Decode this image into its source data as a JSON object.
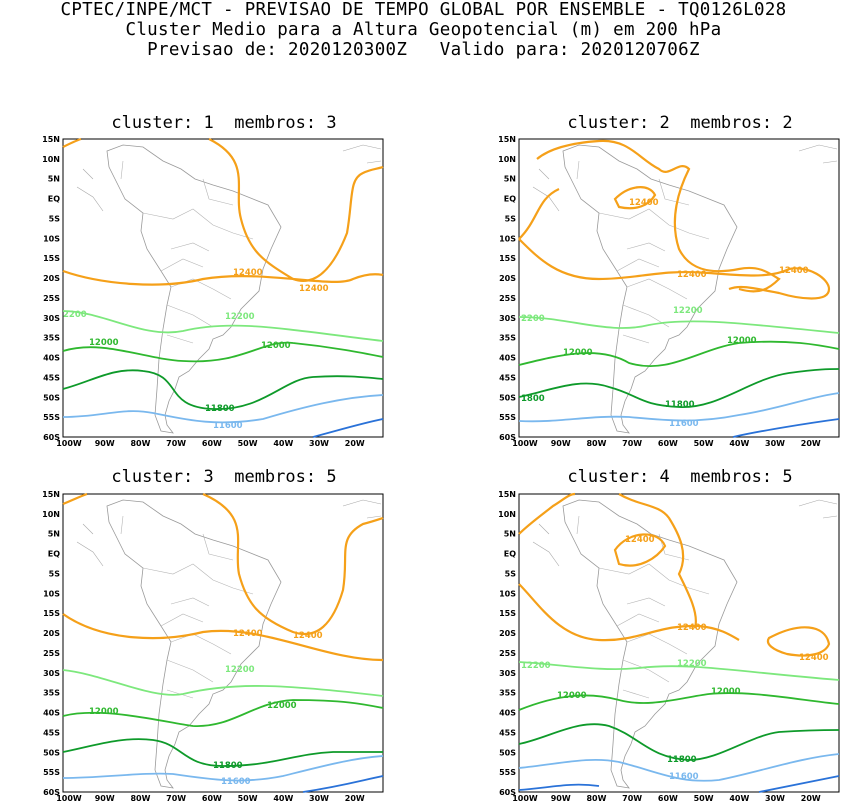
{
  "header": {
    "line1": "CPTEC/INPE/MCT - PREVISAO DE TEMPO GLOBAL POR ENSEMBLE - TQ0126L028",
    "line2": "Cluster Medio para a Altura Geopotencial (m) em 200 hPa",
    "line3": "Previsao de: 2020120300Z   Valido para: 2020120706Z"
  },
  "colors": {
    "c12400": "#f5a019",
    "c12200": "#7de87d",
    "c12000": "#2fb82f",
    "c11800": "#0e9a2a",
    "c11600": "#7ab8ee",
    "c11400": "#2a72d8",
    "land": "#9a9a9a"
  },
  "lat_labels": [
    "15N",
    "10N",
    "5N",
    "EQ",
    "5S",
    "10S",
    "15S",
    "20S",
    "25S",
    "30S",
    "35S",
    "40S",
    "45S",
    "50S",
    "55S",
    "60S"
  ],
  "lon_labels": [
    "100W",
    "90W",
    "80W",
    "70W",
    "60W",
    "50W",
    "40W",
    "30W",
    "20W"
  ],
  "panels": [
    {
      "title": "cluster: 1  membros: 3",
      "labels": {
        "a": "12400",
        "b": "12400",
        "c": "2200",
        "d": "12200",
        "e": "12000",
        "f": "12000",
        "g": "11800",
        "h": "11600"
      }
    },
    {
      "title": "cluster: 2  membros: 2",
      "labels": {
        "a": "12400",
        "b": "12400",
        "b2": "12400",
        "c": "2200",
        "d": "12200",
        "e": "12000",
        "f": "12000",
        "g": "1800",
        "h": "11800",
        "i": "11600"
      }
    },
    {
      "title": "cluster: 3  membros: 5",
      "labels": {
        "a": "12400",
        "b": "12400",
        "c": "12200",
        "d": "12000",
        "e": "12000",
        "f": "11800",
        "g": "11600"
      }
    },
    {
      "title": "cluster: 4  membros: 5",
      "labels": {
        "a": "12400",
        "b": "12400",
        "b2": "12400",
        "c": "12200",
        "d": "12200",
        "e": "12000",
        "f": "12000",
        "g": "11800",
        "h": "11600"
      }
    }
  ]
}
